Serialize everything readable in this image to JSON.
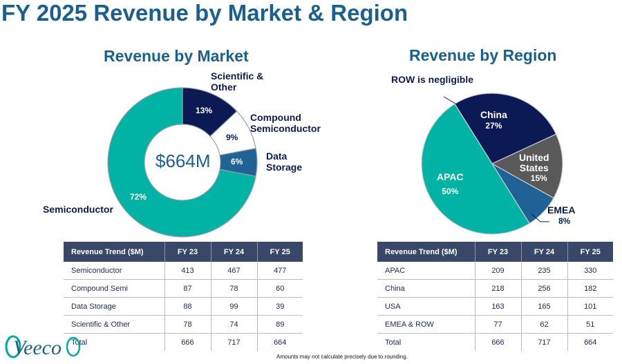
{
  "title": "FY 2025 Revenue by Market & Region",
  "chart_data": [
    {
      "type": "pie",
      "variant": "donut",
      "title": "Revenue by Market",
      "center_label": "$664M",
      "categories": [
        "Scientific & Other",
        "Compound Semiconductor",
        "Data Storage",
        "Semiconductor"
      ],
      "values": [
        13,
        9,
        6,
        72
      ],
      "value_labels": [
        "13%",
        "9%",
        "6%",
        "72%"
      ],
      "colors": [
        "#0b1a55",
        "#ffffff",
        "#1f6296",
        "#00b3a4"
      ]
    },
    {
      "type": "pie",
      "title": "Revenue by Region",
      "annotation": "ROW is negligible",
      "categories": [
        "China",
        "United States",
        "EMEA",
        "APAC"
      ],
      "values": [
        27,
        15,
        8,
        50
      ],
      "value_labels": [
        "27%",
        "15%",
        "8%",
        "50%"
      ],
      "colors": [
        "#0b1a55",
        "#595959",
        "#1f6296",
        "#00b3a4"
      ]
    }
  ],
  "labels": {
    "sci1": "Scientific &",
    "sci2": "Other",
    "comp1": "Compound",
    "comp2": "Semiconductor",
    "ds1": "Data",
    "ds2": "Storage",
    "semi": "Semiconductor",
    "china": "China",
    "us1": "United",
    "us2": "States",
    "emea": "EMEA",
    "apac": "APAC"
  },
  "market_table": {
    "headers": [
      "Revenue Trend ($M)",
      "FY 23",
      "FY 24",
      "FY 25"
    ],
    "rows": [
      [
        "Semiconductor",
        "413",
        "467",
        "477"
      ],
      [
        "Compound Semi",
        "87",
        "78",
        "60"
      ],
      [
        "Data Storage",
        "88",
        "99",
        "39"
      ],
      [
        "Scientific & Other",
        "78",
        "74",
        "89"
      ],
      [
        "Total",
        "666",
        "717",
        "664"
      ]
    ]
  },
  "region_table": {
    "headers": [
      "Revenue Trend ($M)",
      "FY 23",
      "FY 24",
      "FY 25"
    ],
    "rows": [
      [
        "APAC",
        "209",
        "235",
        "330"
      ],
      [
        "China",
        "218",
        "256",
        "182"
      ],
      [
        "USA",
        "163",
        "165",
        "101"
      ],
      [
        "EMEA & ROW",
        "77",
        "62",
        "51"
      ],
      [
        "Total",
        "666",
        "717",
        "664"
      ]
    ]
  },
  "logo": "Veeco",
  "footnote": "Amounts may not calculate precisely due to rounding."
}
